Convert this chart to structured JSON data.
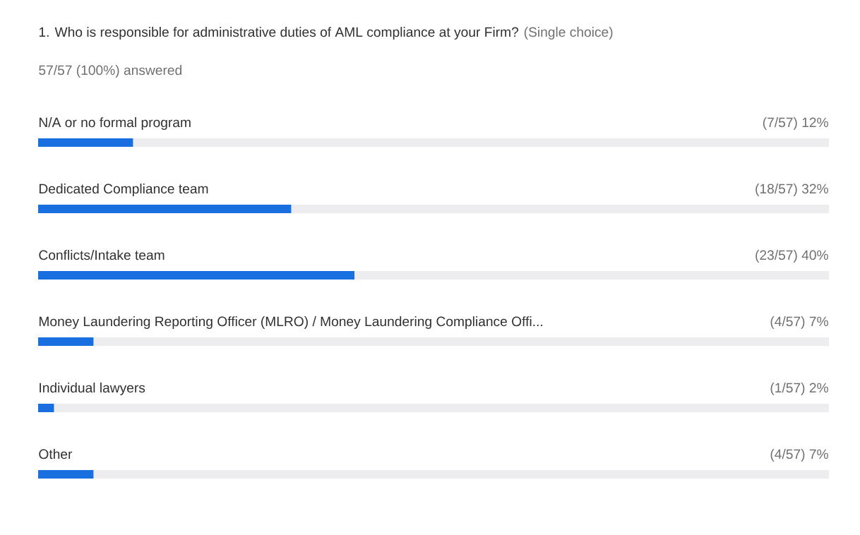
{
  "chart_data": {
    "type": "bar",
    "orientation": "horizontal",
    "title": "1. Who is responsible for administrative duties of AML compliance at your Firm?",
    "subtitle": "(Single choice)",
    "annotations": [
      "57/57 (100%) answered"
    ],
    "categories": [
      "N/A or no formal program",
      "Dedicated Compliance team",
      "Conflicts/Intake team",
      "Money Laundering Reporting Officer (MLRO) / Money Laundering Compliance Offi...",
      "Individual lawyers",
      "Other"
    ],
    "values": [
      12,
      32,
      40,
      7,
      2,
      7
    ],
    "value_labels": [
      "(7/57) 12%",
      "(18/57) 32%",
      "(23/57) 40%",
      "(4/57) 7%",
      "(1/57) 2%",
      "(4/57) 7%"
    ],
    "color": "#1a6fe0",
    "xlim": [
      0,
      100
    ]
  }
}
